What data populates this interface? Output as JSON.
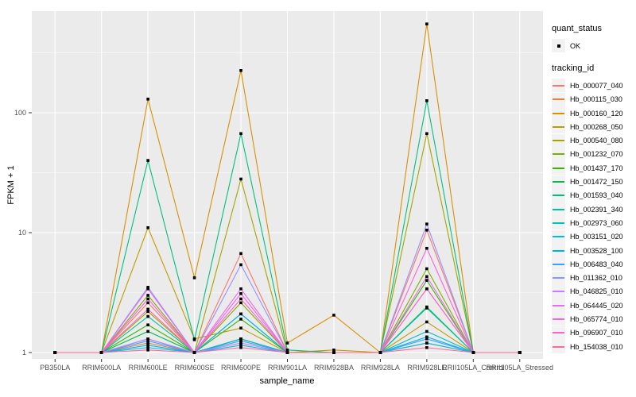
{
  "chart": {
    "y_axis": {
      "title": "FPKM + 1",
      "tick_labels": [
        "1",
        "10",
        "100"
      ]
    },
    "x_axis": {
      "title": "sample_name"
    },
    "legend": {
      "quant_status_title": "quant_status",
      "quant_status_items": [
        {
          "label": "OK",
          "symbol": "black-point"
        }
      ],
      "tracking_id_title": "tracking_id"
    }
  },
  "chart_data": {
    "type": "line",
    "title": "",
    "xlabel": "sample_name",
    "ylabel": "FPKM + 1",
    "y_scale": "log10",
    "ylim": [
      0.9,
      700
    ],
    "y_major_ticks": [
      1,
      10,
      100
    ],
    "y_minor_gridlines": [
      3.1623,
      31.623,
      316.23
    ],
    "grid": true,
    "panel_background": "#EBEBEB",
    "gridline_color": "#FFFFFF",
    "tick_label_color": "#4D4D4D",
    "marker": "small-black-square",
    "legend_position": "right",
    "quant_status": {
      "title": "quant_status",
      "values": [
        "OK"
      ]
    },
    "categories": [
      "PB350LA",
      "RRIM600LA",
      "RRIM600LE",
      "RRIM600SE",
      "RRIM600PE",
      "RRIM901LA",
      "RRIM928BA",
      "RRIM928LA",
      "RRIM928LE",
      "RRII105LA_Control",
      "RRII105LA_Stressed"
    ],
    "series": [
      {
        "name": "Hb_000077_040",
        "color": "#F8766D",
        "values": [
          1,
          1,
          2.6,
          1,
          6.7,
          1,
          1,
          1,
          10.5,
          1,
          1
        ]
      },
      {
        "name": "Hb_000115_030",
        "color": "#EA8331",
        "values": [
          1,
          1,
          1.2,
          1,
          1.3,
          1,
          1,
          1,
          1.2,
          1,
          1
        ]
      },
      {
        "name": "Hb_000160_120",
        "color": "#D89000",
        "values": [
          1,
          1,
          130,
          4.2,
          225,
          1.2,
          2.05,
          1,
          550,
          1,
          1
        ]
      },
      {
        "name": "Hb_000268_050",
        "color": "#C09B00",
        "values": [
          1,
          1,
          11,
          1.3,
          1.6,
          1,
          1.05,
          1,
          1.8,
          1,
          1
        ]
      },
      {
        "name": "Hb_000540_080",
        "color": "#A3A500",
        "values": [
          1,
          1,
          2.2,
          1,
          28,
          1,
          1,
          1,
          67,
          1,
          1
        ]
      },
      {
        "name": "Hb_001232_070",
        "color": "#7CAE00",
        "values": [
          1,
          1,
          3.0,
          1,
          2.6,
          1,
          1,
          1,
          5.0,
          1,
          1
        ]
      },
      {
        "name": "Hb_001437_170",
        "color": "#39B600",
        "values": [
          1,
          1,
          1.7,
          1,
          1.9,
          1,
          1,
          1,
          4.0,
          1,
          1
        ]
      },
      {
        "name": "Hb_001472_150",
        "color": "#00BB4E",
        "values": [
          1,
          1,
          1.5,
          1,
          1.3,
          1,
          1,
          1,
          2.4,
          1,
          1
        ]
      },
      {
        "name": "Hb_001593_040",
        "color": "#00BF7D",
        "values": [
          1,
          1,
          40,
          1.28,
          67,
          1.05,
          1,
          1,
          126,
          1,
          1
        ]
      },
      {
        "name": "Hb_002391_340",
        "color": "#00C1A3",
        "values": [
          1,
          1,
          2.0,
          1,
          2.1,
          1,
          1,
          1,
          2.35,
          1,
          1
        ]
      },
      {
        "name": "Hb_002973_060",
        "color": "#00BFC4",
        "values": [
          1,
          1,
          1.3,
          1,
          1.3,
          1,
          1,
          1,
          1.5,
          1,
          1
        ]
      },
      {
        "name": "Hb_003151_020",
        "color": "#00BAE0",
        "values": [
          1,
          1,
          1.1,
          1,
          1.15,
          1,
          1,
          1,
          1.2,
          1,
          1
        ]
      },
      {
        "name": "Hb_003528_100",
        "color": "#00B0F6",
        "values": [
          1,
          1,
          1.15,
          1,
          2.1,
          1,
          1,
          1,
          1.35,
          1,
          1
        ]
      },
      {
        "name": "Hb_006483_040",
        "color": "#35A2FF",
        "values": [
          1,
          1,
          1.25,
          1,
          1.25,
          1,
          1,
          1,
          1.3,
          1,
          1
        ]
      },
      {
        "name": "Hb_011362_010",
        "color": "#9590FF",
        "values": [
          1,
          1,
          3.5,
          1,
          5.4,
          1,
          1,
          1,
          11.8,
          1,
          1
        ]
      },
      {
        "name": "Hb_046825_010",
        "color": "#C77CFF",
        "values": [
          1,
          1,
          1.3,
          1,
          1.2,
          1,
          1,
          1,
          3.4,
          1,
          1
        ]
      },
      {
        "name": "Hb_064445_020",
        "color": "#E76BF3",
        "values": [
          1,
          1,
          3.4,
          1,
          3.4,
          1,
          1,
          1,
          4.3,
          1,
          1
        ]
      },
      {
        "name": "Hb_065774_010",
        "color": "#FA62DB",
        "values": [
          1,
          1,
          2.8,
          1,
          3.1,
          1,
          1,
          1,
          7.4,
          1,
          1
        ]
      },
      {
        "name": "Hb_096907_010",
        "color": "#FF61C9",
        "values": [
          1,
          1,
          2.3,
          1,
          2.8,
          1,
          1,
          1,
          3.4,
          1,
          1
        ]
      },
      {
        "name": "Hb_154038_010",
        "color": "#FF6A98",
        "values": [
          1,
          1,
          1.05,
          1,
          1.1,
          1,
          1,
          1,
          1.1,
          1,
          1
        ]
      }
    ]
  }
}
